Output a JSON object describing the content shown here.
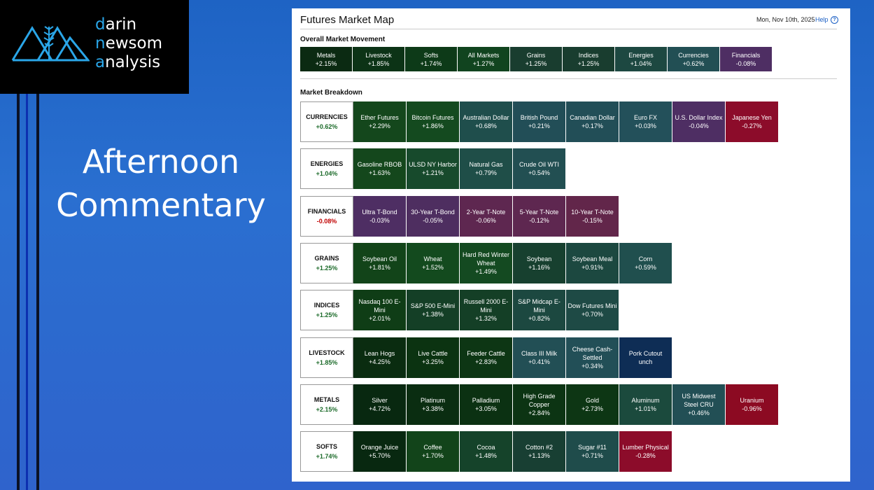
{
  "logo": {
    "line1_accent": "d",
    "line1_rest": "arin",
    "line2_accent": "n",
    "line2_rest": "ewsom",
    "line3_accent": "a",
    "line3_rest": "nalysis"
  },
  "slide_title": {
    "line1": "Afternoon",
    "line2": "Commentary"
  },
  "panel": {
    "title": "Futures Market Map",
    "date": "Mon, Nov 10th, 2025",
    "help": "Help",
    "help_icon": "?",
    "overall_label": "Overall Market Movement",
    "breakdown_label": "Market Breakdown"
  },
  "overall": [
    {
      "name": "Metals",
      "value": "+2.15%",
      "color": "#0b2a12"
    },
    {
      "name": "Livestock",
      "value": "+1.85%",
      "color": "#0c3316"
    },
    {
      "name": "Softs",
      "value": "+1.74%",
      "color": "#0d3a18"
    },
    {
      "name": "All Markets",
      "value": "+1.27%",
      "color": "#11441f"
    },
    {
      "name": "Grains",
      "value": "+1.25%",
      "color": "#193d2f"
    },
    {
      "name": "Indices",
      "value": "+1.25%",
      "color": "#193d2f"
    },
    {
      "name": "Energies",
      "value": "+1.04%",
      "color": "#1d4841"
    },
    {
      "name": "Currencies",
      "value": "+0.62%",
      "color": "#224f54"
    },
    {
      "name": "Financials",
      "value": "-0.08%",
      "color": "#4e2e63"
    }
  ],
  "breakdown": [
    {
      "category": "CURRENCIES",
      "value": "+0.62%",
      "sign": "pos",
      "items": [
        {
          "name": "Ether Futures",
          "value": "+2.29%",
          "color": "#14471c"
        },
        {
          "name": "Bitcoin Futures",
          "value": "+1.86%",
          "color": "#144a1f"
        },
        {
          "name": "Australian Dollar",
          "value": "+0.68%",
          "color": "#1f4e4c"
        },
        {
          "name": "British Pound",
          "value": "+0.21%",
          "color": "#224e57"
        },
        {
          "name": "Canadian Dollar",
          "value": "+0.17%",
          "color": "#224e57"
        },
        {
          "name": "Euro FX",
          "value": "+0.03%",
          "color": "#23505a"
        },
        {
          "name": "U.S. Dollar Index",
          "value": "-0.04%",
          "color": "#4e2e63"
        },
        {
          "name": "Japanese Yen",
          "value": "-0.27%",
          "color": "#8c0c2a"
        }
      ]
    },
    {
      "category": "ENERGIES",
      "value": "+1.04%",
      "sign": "pos",
      "items": [
        {
          "name": "Gasoline RBOB",
          "value": "+1.63%",
          "color": "#14471c"
        },
        {
          "name": "ULSD NY Harbor",
          "value": "+1.21%",
          "color": "#174a2c"
        },
        {
          "name": "Natural Gas",
          "value": "+0.79%",
          "color": "#1f4e48"
        },
        {
          "name": "Crude Oil WTI",
          "value": "+0.54%",
          "color": "#224f52"
        }
      ]
    },
    {
      "category": "FINANCIALS",
      "value": "-0.08%",
      "sign": "neg",
      "items": [
        {
          "name": "Ultra T-Bond",
          "value": "-0.03%",
          "color": "#4e2e63"
        },
        {
          "name": "30-Year T-Bond",
          "value": "-0.05%",
          "color": "#4e2e60"
        },
        {
          "name": "2-Year T-Note",
          "value": "-0.06%",
          "color": "#5e2750"
        },
        {
          "name": "5-Year T-Note",
          "value": "-0.12%",
          "color": "#5e2750"
        },
        {
          "name": "10-Year T-Note",
          "value": "-0.15%",
          "color": "#62264a"
        }
      ]
    },
    {
      "category": "GRAINS",
      "value": "+1.25%",
      "sign": "pos",
      "items": [
        {
          "name": "Soybean Oil",
          "value": "+1.81%",
          "color": "#124419"
        },
        {
          "name": "Wheat",
          "value": "+1.52%",
          "color": "#134a1e"
        },
        {
          "name": "Hard Red Winter Wheat",
          "value": "+1.49%",
          "color": "#144a21"
        },
        {
          "name": "Soybean",
          "value": "+1.16%",
          "color": "#17402f"
        },
        {
          "name": "Soybean Meal",
          "value": "+0.91%",
          "color": "#1c4840"
        },
        {
          "name": "Corn",
          "value": "+0.59%",
          "color": "#204f4e"
        }
      ]
    },
    {
      "category": "INDICES",
      "value": "+1.25%",
      "sign": "pos",
      "items": [
        {
          "name": "Nasdaq 100 E-Mini",
          "value": "+2.01%",
          "color": "#0f3d16"
        },
        {
          "name": "S&P 500 E-Mini",
          "value": "+1.38%",
          "color": "#143f26"
        },
        {
          "name": "Russell 2000 E-Mini",
          "value": "+1.32%",
          "color": "#143f26"
        },
        {
          "name": "S&P Midcap E-Mini",
          "value": "+0.82%",
          "color": "#1c4840"
        },
        {
          "name": "Dow Futures Mini",
          "value": "+0.70%",
          "color": "#1e4a45"
        }
      ]
    },
    {
      "category": "LIVESTOCK",
      "value": "+1.85%",
      "sign": "pos",
      "items": [
        {
          "name": "Lean Hogs",
          "value": "+4.25%",
          "color": "#0a2c10"
        },
        {
          "name": "Live Cattle",
          "value": "+3.25%",
          "color": "#0b3311"
        },
        {
          "name": "Feeder Cattle",
          "value": "+2.83%",
          "color": "#0d3614"
        },
        {
          "name": "Class III Milk",
          "value": "+0.41%",
          "color": "#224f55"
        },
        {
          "name": "Cheese Cash-Settled",
          "value": "+0.34%",
          "color": "#224f57"
        },
        {
          "name": "Pork Cutout",
          "value": "unch",
          "color": "#0e2d55"
        }
      ]
    },
    {
      "category": "METALS",
      "value": "+2.15%",
      "sign": "pos",
      "items": [
        {
          "name": "Silver",
          "value": "+4.72%",
          "color": "#082810"
        },
        {
          "name": "Platinum",
          "value": "+3.38%",
          "color": "#0a2d11"
        },
        {
          "name": "Palladium",
          "value": "+3.05%",
          "color": "#0b3112"
        },
        {
          "name": "High Grade Copper",
          "value": "+2.84%",
          "color": "#0c3413"
        },
        {
          "name": "Gold",
          "value": "+2.73%",
          "color": "#0d3614"
        },
        {
          "name": "Aluminum",
          "value": "+1.01%",
          "color": "#1b4a3d"
        },
        {
          "name": "US Midwest Steel CRU",
          "value": "+0.46%",
          "color": "#224f55"
        },
        {
          "name": "Uranium",
          "value": "-0.96%",
          "color": "#8c0a22"
        }
      ]
    },
    {
      "category": "SOFTS",
      "value": "+1.74%",
      "sign": "pos",
      "items": [
        {
          "name": "Orange Juice",
          "value": "+5.70%",
          "color": "#082810"
        },
        {
          "name": "Coffee",
          "value": "+1.70%",
          "color": "#12441a"
        },
        {
          "name": "Cocoa",
          "value": "+1.48%",
          "color": "#15432a"
        },
        {
          "name": "Cotton #2",
          "value": "+1.13%",
          "color": "#183f33"
        },
        {
          "name": "Sugar #11",
          "value": "+0.71%",
          "color": "#1f4c4b"
        },
        {
          "name": "Lumber Physical",
          "value": "-0.28%",
          "color": "#8c0c2a"
        }
      ]
    }
  ]
}
